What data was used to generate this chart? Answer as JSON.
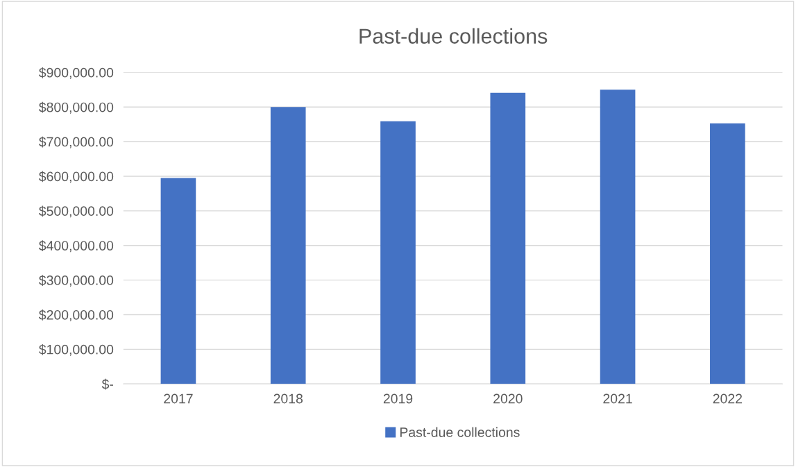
{
  "chart_data": {
    "type": "bar",
    "title": "Past-due collections",
    "categories": [
      "2017",
      "2018",
      "2019",
      "2020",
      "2021",
      "2022"
    ],
    "series": [
      {
        "name": "Past-due collections",
        "color": "#4472c4",
        "values": [
          595000,
          800000,
          759000,
          841000,
          850000,
          753000
        ]
      }
    ],
    "ylim": [
      0,
      900000
    ],
    "yticks": [
      {
        "value": 0,
        "label": "$-"
      },
      {
        "value": 100000,
        "label": "$100,000.00"
      },
      {
        "value": 200000,
        "label": "$200,000.00"
      },
      {
        "value": 300000,
        "label": "$300,000.00"
      },
      {
        "value": 400000,
        "label": "$400,000.00"
      },
      {
        "value": 500000,
        "label": "$500,000.00"
      },
      {
        "value": 600000,
        "label": "$600,000.00"
      },
      {
        "value": 700000,
        "label": "$700,000.00"
      },
      {
        "value": 800000,
        "label": "$800,000.00"
      },
      {
        "value": 900000,
        "label": "$900,000.00"
      }
    ],
    "grid": "y",
    "legend": "bottom"
  }
}
